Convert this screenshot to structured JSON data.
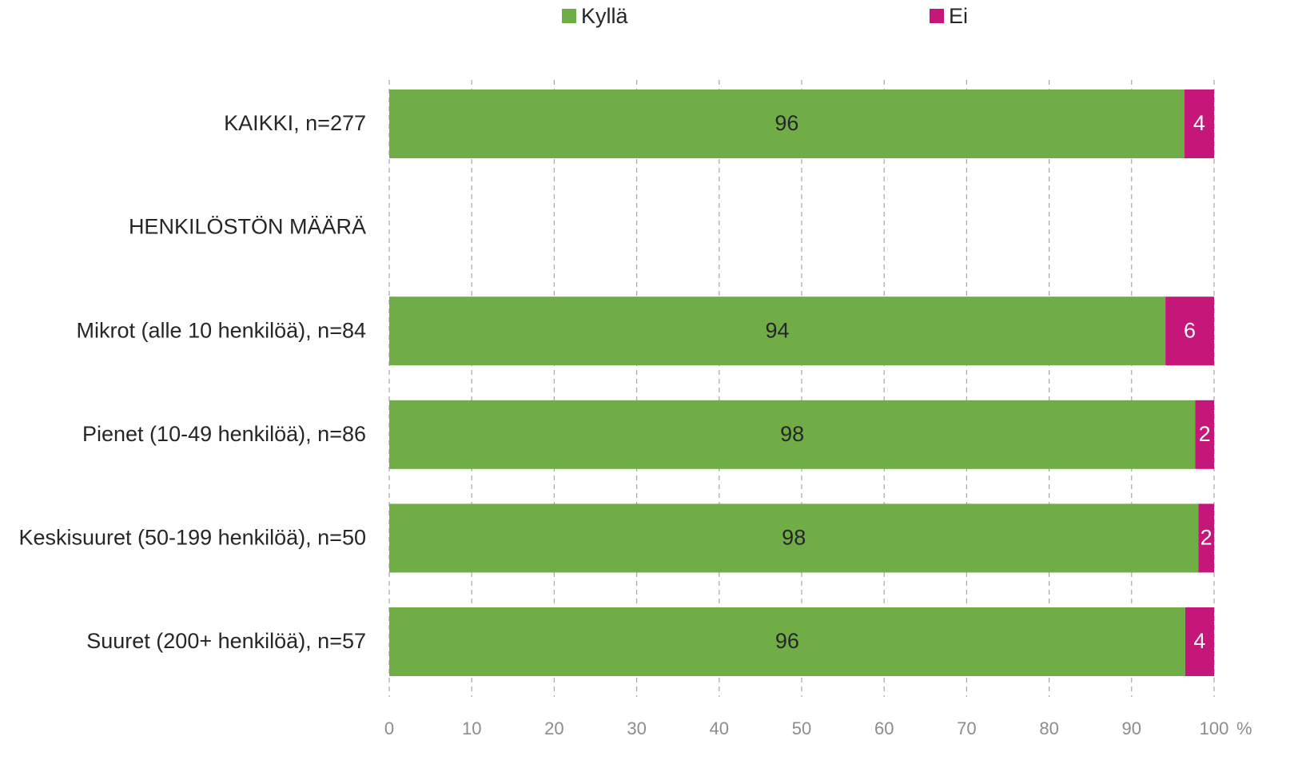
{
  "chart_data": {
    "type": "bar",
    "orientation": "horizontal",
    "stacked": true,
    "title": "",
    "xlabel": "",
    "ylabel": "",
    "x_unit": "%",
    "xlim": [
      0,
      100
    ],
    "x_ticks": [
      "0",
      "10",
      "20",
      "30",
      "40",
      "50",
      "60",
      "70",
      "80",
      "90",
      "100"
    ],
    "grid": "vertical dashed",
    "legend_position": "top",
    "categories": [
      "KAIKKI, n=277",
      "HENKILÖSTÖN MÄÄRÄ",
      "Mikrot (alle 10 henkilöä), n=84",
      "Pienet (10-49 henkilöä), n=86",
      "Keskisuuret (50-199 henkilöä), n=50",
      "Suuret (200+ henkilöä), n=57"
    ],
    "series": [
      {
        "name": "Kyllä",
        "color": "#70ad47",
        "label_color": "#262626",
        "values": [
          96.4,
          null,
          94.1,
          97.7,
          98.1,
          96.5
        ],
        "labels": [
          "96",
          "",
          "94",
          "98",
          "98",
          "96"
        ]
      },
      {
        "name": "Ei",
        "color": "#c5177a",
        "label_color": "#ffffff",
        "values": [
          3.6,
          null,
          5.9,
          2.3,
          1.9,
          3.5
        ],
        "labels": [
          "4",
          "",
          "6",
          "2",
          "2",
          "4"
        ]
      }
    ]
  }
}
